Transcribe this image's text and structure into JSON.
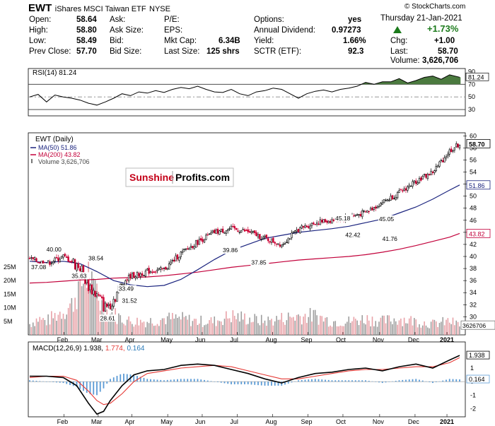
{
  "header": {
    "symbol": "EWT",
    "name": "iShares MSCI Taiwan ETF",
    "exchange": "NYSE",
    "watermark": "© StockCharts.com",
    "date": "Thursday  21-Jan-2021",
    "change_pct": "+1.73%",
    "chg_label": "Chg:",
    "chg_value": "+1.00",
    "last_label": "Last:",
    "last_value": "58.70",
    "volume_label": "Volume:",
    "volume_value": "3,626,706",
    "quote": {
      "open_l": "Open:",
      "open_v": "58.64",
      "high_l": "High:",
      "high_v": "58.80",
      "low_l": "Low:",
      "low_v": "58.49",
      "prev_l": "Prev Close:",
      "prev_v": "57.70",
      "ask_l": "Ask:",
      "asksize_l": "Ask Size:",
      "bid_l": "Bid:",
      "bidsize_l": "Bid Size:",
      "pe_l": "P/E:",
      "eps_l": "EPS:",
      "mktcap_l": "Mkt Cap:",
      "mktcap_v": "6.34B",
      "lastsize_l": "Last Size:",
      "lastsize_v": "125 shrs",
      "options_l": "Options:",
      "options_v": "yes",
      "div_l": "Annual Dividend:",
      "div_v": "0.97273",
      "yield_l": "Yield:",
      "yield_v": "1.66%",
      "sctr_l": "SCTR (ETF):",
      "sctr_v": "92.3"
    }
  },
  "logo": {
    "left": "Sunshine",
    "right": "Profits.com"
  },
  "colors": {
    "up": "#000000",
    "down": "#cc0033",
    "ma50": "#1a237e",
    "ma200": "#c2003a",
    "rsi_fill": "#4b7a3f",
    "macd_line": "#000000",
    "macd_signal": "#e53935",
    "histogram": "#5b9bd5",
    "volume_up": "#9e9e9e",
    "volume_down": "#e8a2a8",
    "change_up": "#1b7a1b"
  },
  "chart_data": [
    {
      "type": "line",
      "title": "RSI(14) 81.24",
      "current_label": "81.24",
      "ylim": [
        20,
        95
      ],
      "ticks": [
        30,
        50,
        70,
        90
      ],
      "reference_lines": [
        30,
        50,
        70
      ],
      "x": [
        0,
        5,
        10,
        15,
        20,
        25,
        30,
        35,
        40,
        45,
        50,
        55,
        60,
        65,
        70,
        75,
        80,
        85,
        90,
        95,
        100,
        105,
        110,
        115,
        120,
        125,
        130,
        135,
        140,
        145,
        150,
        155,
        160,
        165,
        170,
        175,
        180,
        185,
        190,
        195,
        200,
        205,
        210,
        215,
        220,
        225,
        230,
        235,
        240,
        245,
        250,
        256
      ],
      "values": [
        50,
        54,
        42,
        53,
        50,
        48,
        45,
        40,
        37,
        42,
        48,
        55,
        52,
        58,
        56,
        60,
        57,
        62,
        65,
        63,
        67,
        62,
        58,
        57,
        62,
        55,
        52,
        58,
        60,
        64,
        62,
        55,
        48,
        55,
        59,
        61,
        58,
        62,
        64,
        67,
        73,
        70,
        74,
        74,
        79,
        72,
        76,
        81,
        83,
        78,
        85,
        81.24
      ]
    },
    {
      "type": "candlestick",
      "title": "EWT (Daily) 58.70",
      "last_label": "58.70",
      "ylim": [
        27,
        60.5
      ],
      "price_ticks": [
        30,
        32,
        34,
        36,
        38,
        40,
        42,
        44,
        46,
        48,
        50,
        52,
        54,
        56,
        58,
        60
      ],
      "x_axis": [
        "Feb",
        "Mar",
        "Apr",
        "May",
        "Jun",
        "Jul",
        "Aug",
        "Sep",
        "Oct",
        "Nov",
        "Dec",
        "2021"
      ],
      "x_month_pos": [
        0.082,
        0.16,
        0.237,
        0.319,
        0.398,
        0.478,
        0.559,
        0.64,
        0.72,
        0.804,
        0.885,
        0.958
      ],
      "series": [
        {
          "name": "EWT (Daily)",
          "x": [
            0,
            10,
            20,
            30,
            34,
            40,
            45,
            50,
            55,
            60,
            65,
            70,
            80,
            90,
            100,
            110,
            120,
            130,
            140,
            150,
            160,
            170,
            180,
            190,
            200,
            210,
            220,
            230,
            240,
            250,
            256
          ],
          "values": [
            39.6,
            38.8,
            40.0,
            38.3,
            35.6,
            33.5,
            31.5,
            33.0,
            35.5,
            36.8,
            37.0,
            37.5,
            37.85,
            40.5,
            42.4,
            44.0,
            44.6,
            44.1,
            43.0,
            42.0,
            44.5,
            45.6,
            46.0,
            46.5,
            47.3,
            49.0,
            50.5,
            52.5,
            54.0,
            57.5,
            58.7
          ]
        },
        {
          "name": "MA(50) 51.86",
          "x": [
            0,
            10,
            20,
            30,
            40,
            50,
            60,
            70,
            80,
            90,
            100,
            110,
            120,
            130,
            140,
            150,
            160,
            170,
            180,
            190,
            200,
            210,
            220,
            230,
            240,
            250,
            256
          ],
          "values": [
            39.2,
            39.0,
            39.2,
            38.8,
            37.5,
            36.0,
            35.3,
            35.0,
            35.2,
            36.2,
            37.8,
            39.5,
            41.0,
            42.0,
            43.0,
            43.5,
            44.0,
            44.3,
            44.6,
            45.0,
            45.6,
            46.2,
            47.2,
            48.2,
            49.5,
            51.0,
            51.86
          ]
        },
        {
          "name": "MA(200) 43.82",
          "x": [
            0,
            10,
            20,
            30,
            40,
            50,
            60,
            70,
            80,
            90,
            100,
            110,
            120,
            130,
            140,
            150,
            160,
            170,
            180,
            190,
            200,
            210,
            220,
            230,
            240,
            250,
            256
          ],
          "values": [
            35.6,
            35.7,
            35.9,
            36.1,
            36.2,
            36.4,
            36.5,
            36.6,
            36.8,
            37.1,
            37.4,
            37.8,
            38.2,
            38.5,
            38.8,
            39.1,
            39.4,
            39.6,
            39.8,
            40.0,
            40.3,
            40.7,
            41.2,
            41.8,
            42.5,
            43.2,
            43.82
          ]
        },
        {
          "name": "Volume 3,626,706",
          "x": [
            0,
            5,
            10,
            15,
            20,
            25,
            28,
            32,
            35,
            38,
            40,
            42,
            45,
            48,
            52,
            55,
            60,
            65,
            70,
            80,
            90,
            100,
            110,
            120,
            130,
            140,
            150,
            160,
            170,
            180,
            190,
            200,
            210,
            220,
            230,
            240,
            250,
            256
          ],
          "values": [
            4,
            6,
            5,
            7,
            9,
            11,
            16,
            20,
            23,
            15,
            18,
            12,
            9,
            8,
            7,
            6,
            5,
            5,
            5,
            6,
            6,
            5,
            5,
            7,
            6,
            5,
            6,
            7,
            7,
            5,
            5,
            6,
            5,
            6,
            5,
            4,
            5,
            3.6
          ]
        }
      ],
      "price_labels": [
        {
          "text": "40.00",
          "x": 15,
          "y": 40.0
        },
        {
          "text": "38.54",
          "x": 40,
          "y": 38.54
        },
        {
          "text": "37.08",
          "x": 0,
          "y": 37.08
        },
        {
          "text": "35.63",
          "x": 30,
          "y": 35.63
        },
        {
          "text": "33.49",
          "x": 58,
          "y": 33.49
        },
        {
          "text": "31.52",
          "x": 60,
          "y": 31.52
        },
        {
          "text": "28.61",
          "x": 47,
          "y": 28.61
        },
        {
          "text": "39.86",
          "x": 120,
          "y": 39.86
        },
        {
          "text": "37.85",
          "x": 137,
          "y": 37.85
        },
        {
          "text": "45.18",
          "x": 187,
          "y": 45.18
        },
        {
          "text": "42.42",
          "x": 193,
          "y": 42.42
        },
        {
          "text": "45.05",
          "x": 213,
          "y": 45.05
        },
        {
          "text": "41.76",
          "x": 215,
          "y": 41.76
        }
      ],
      "right_labels": [
        "58.70",
        "51.86",
        "43.82"
      ],
      "volume_ticks": [
        "25M",
        "20M",
        "15M",
        "10M",
        "5M"
      ],
      "volume_ylim": [
        0,
        25
      ],
      "volume_last_label": "3626706"
    },
    {
      "type": "line",
      "title": "MACD(12,26,9) 1.938, 1.774, 0.164",
      "title_main": "MACD(12,26,9) 1.938,",
      "title_signal": "1.774,",
      "title_hist": "0.164",
      "ylim": [
        -2.5,
        2.1
      ],
      "ticks": [
        -2,
        -1,
        0,
        1
      ],
      "x_axis": [
        "Feb",
        "Mar",
        "Apr",
        "May",
        "Jun",
        "Jul",
        "Aug",
        "Sep",
        "Oct",
        "Nov",
        "Dec",
        "2021"
      ],
      "right_labels": [
        "1.938",
        "0.164"
      ],
      "x": [
        0,
        10,
        20,
        28,
        35,
        40,
        44,
        48,
        55,
        62,
        70,
        80,
        90,
        100,
        110,
        120,
        130,
        140,
        150,
        160,
        170,
        180,
        190,
        200,
        210,
        220,
        230,
        240,
        250,
        256
      ],
      "series": [
        {
          "name": "MACD",
          "values": [
            0.4,
            0.4,
            0.3,
            -0.3,
            -1.6,
            -2.4,
            -2.2,
            -1.4,
            -0.3,
            0.5,
            0.8,
            0.9,
            1.2,
            1.3,
            1.2,
            0.9,
            0.6,
            0.2,
            -0.1,
            0.3,
            0.6,
            0.7,
            0.9,
            1.0,
            0.8,
            1.1,
            1.3,
            1.0,
            1.6,
            1.938
          ]
        },
        {
          "name": "Signal",
          "values": [
            0.3,
            0.4,
            0.4,
            0.1,
            -0.7,
            -1.4,
            -1.7,
            -1.6,
            -0.9,
            0.0,
            0.6,
            0.8,
            1.0,
            1.1,
            1.2,
            1.1,
            0.8,
            0.5,
            0.2,
            0.2,
            0.4,
            0.6,
            0.8,
            0.9,
            0.9,
            1.0,
            1.1,
            1.1,
            1.4,
            1.774
          ]
        },
        {
          "name": "Histogram",
          "values": [
            0.1,
            0.0,
            -0.1,
            -0.4,
            -0.9,
            -1.0,
            -0.5,
            0.2,
            0.6,
            0.5,
            0.2,
            0.1,
            0.2,
            0.2,
            0.0,
            -0.2,
            -0.2,
            -0.3,
            -0.3,
            0.1,
            0.2,
            0.1,
            0.1,
            0.1,
            -0.1,
            0.1,
            0.2,
            -0.1,
            0.2,
            0.164
          ]
        }
      ]
    }
  ]
}
